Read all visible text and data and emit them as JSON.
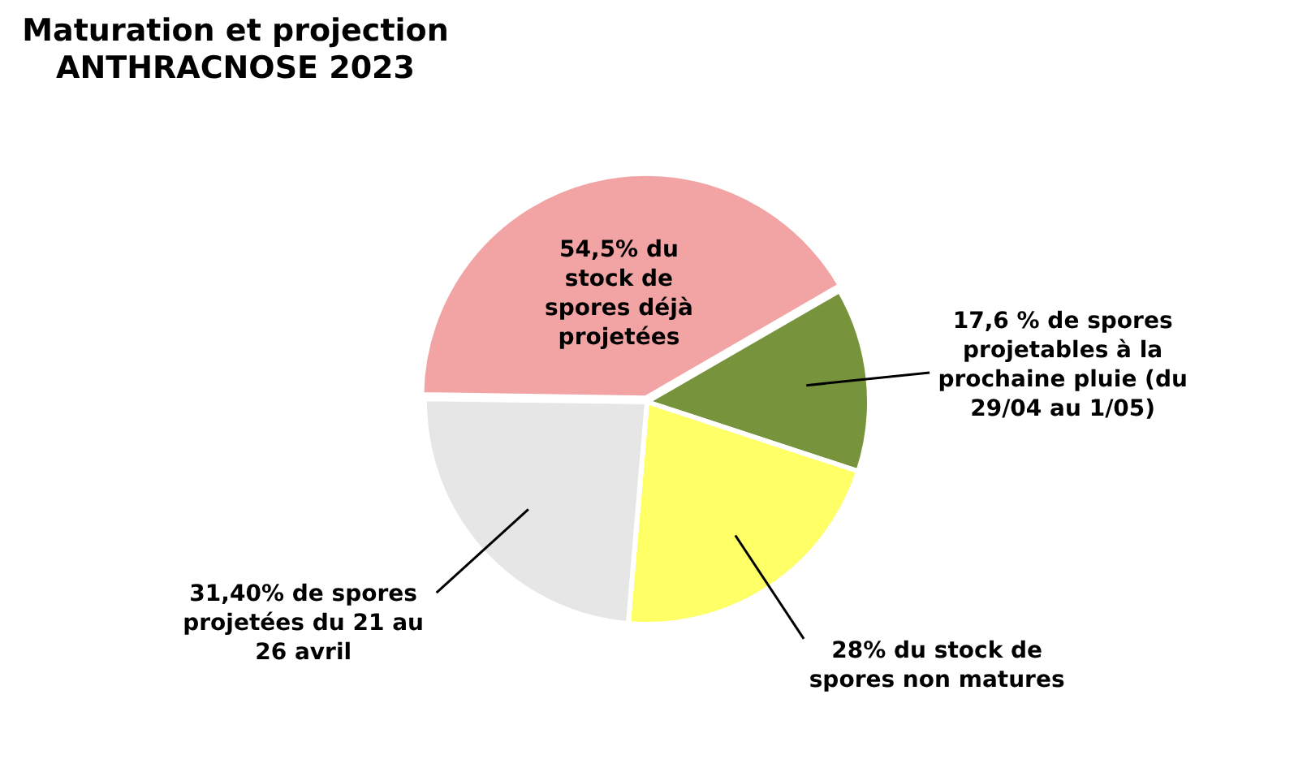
{
  "chart_data": {
    "type": "pie",
    "title": "Maturation et projection ANTHRACNOSE 2023",
    "categories": [
      "17,6 % de spores projetables à la prochaine pluie (du 29/04 au 1/05)",
      "28% du stock de spores non matures",
      "31,40% de spores projetées du 21 au 26 avril",
      "54,5% du stock de spores déjà projetées"
    ],
    "values": [
      17.6,
      28,
      31.4,
      54.5
    ],
    "colors": [
      "#77933c",
      "#ffff66",
      "#e6e6e6",
      "#f2a3a3"
    ]
  }
}
